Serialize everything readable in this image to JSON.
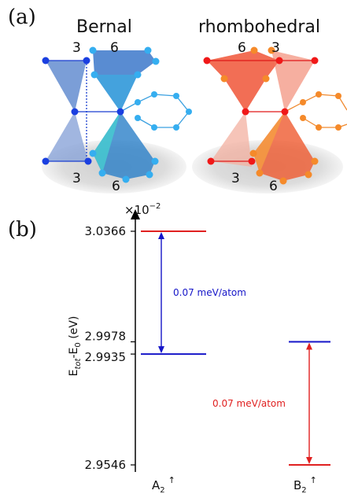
{
  "panel_a": {
    "label": "(a)",
    "left": {
      "title": "Bernal",
      "top_left_num": "3",
      "top_right_num": "6",
      "bottom_left_num": "3",
      "bottom_right_num": "6"
    },
    "right": {
      "title": "rhombohedral",
      "top_left_num": "6",
      "top_right_num": "3",
      "bottom_left_num": "3",
      "bottom_right_num": "6"
    }
  },
  "panel_b": {
    "label": "(b)",
    "multiplier_base": "×10",
    "multiplier_exp": "−2"
  },
  "chart_data": {
    "type": "energy-level",
    "ylabel": {
      "main": "E",
      "sub1": "tot",
      "mid": "-E",
      "sub2": "0",
      "unit": " (eV)"
    },
    "yticks": [
      3.0366,
      2.9978,
      2.9935,
      2.9546
    ],
    "ytick_labels": [
      "3.0366",
      "2.9978",
      "2.9935",
      "2.9546"
    ],
    "ylim": [
      2.9546,
      3.0366
    ],
    "categories": [
      {
        "name": "A",
        "sub": "2",
        "sup": "↑"
      },
      {
        "name": "B",
        "sub": "2",
        "sup": "↑"
      }
    ],
    "levels": [
      {
        "category": 0,
        "value": 3.0366,
        "color": "#e02020"
      },
      {
        "category": 0,
        "value": 2.9935,
        "color": "#1515c8"
      },
      {
        "category": 1,
        "value": 2.9978,
        "color": "#1515c8"
      },
      {
        "category": 1,
        "value": 2.9546,
        "color": "#e02020"
      }
    ],
    "annotations": [
      {
        "text": "0.07 meV/atom",
        "category": 0,
        "from": 3.0366,
        "to": 2.9935,
        "color": "#1515c8"
      },
      {
        "text": "0.07 meV/atom",
        "category": 1,
        "from": 2.9978,
        "to": 2.9546,
        "color": "#e02020"
      }
    ]
  }
}
